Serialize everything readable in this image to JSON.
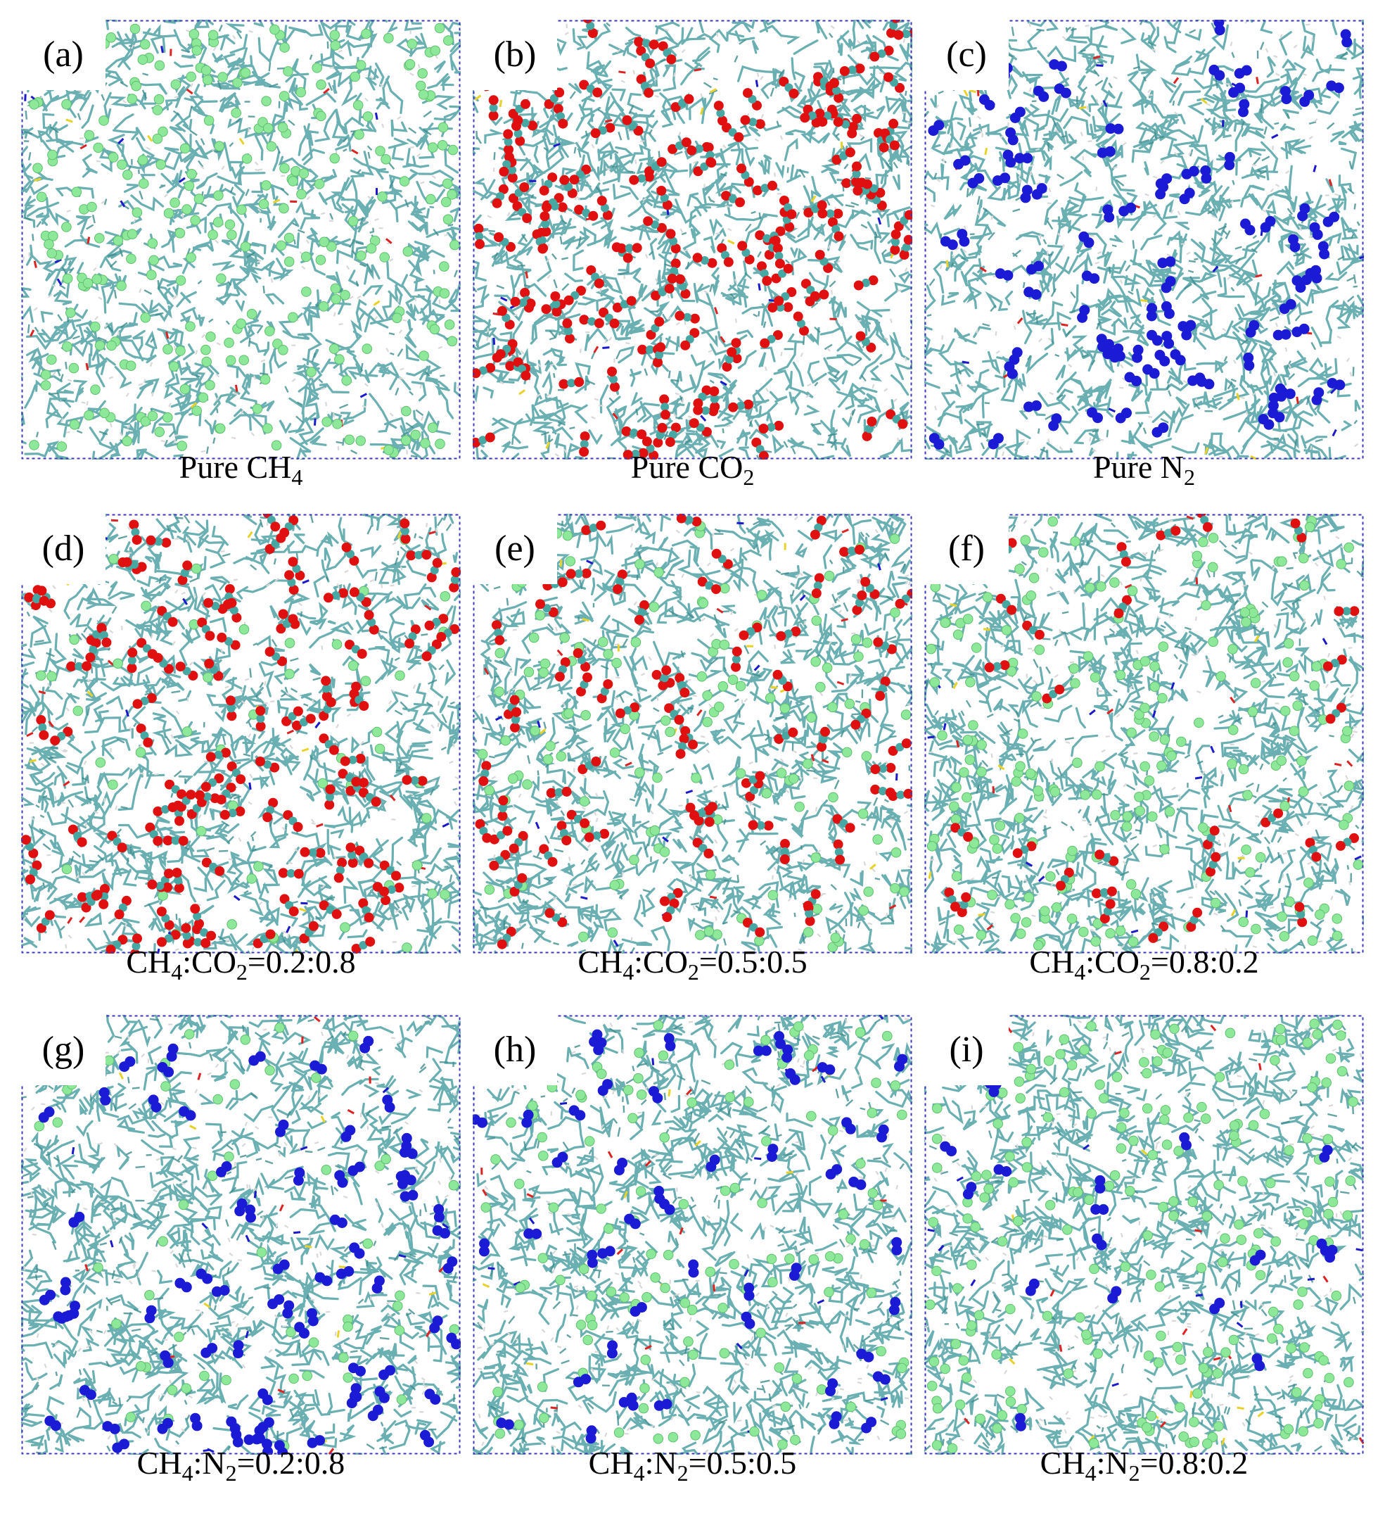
{
  "panels": [
    {
      "label": "(a)",
      "caption": [
        {
          "t": "Pure CH"
        },
        {
          "s": "4"
        }
      ],
      "mix": [
        [
          "ch4",
          1.0
        ]
      ]
    },
    {
      "label": "(b)",
      "caption": [
        {
          "t": "Pure CO"
        },
        {
          "s": "2"
        }
      ],
      "mix": [
        [
          "co2",
          1.0
        ]
      ]
    },
    {
      "label": "(c)",
      "caption": [
        {
          "t": "Pure N"
        },
        {
          "s": "2"
        }
      ],
      "mix": [
        [
          "n2",
          1.0
        ]
      ]
    },
    {
      "label": "(d)",
      "caption": [
        {
          "t": "CH"
        },
        {
          "s": "4"
        },
        {
          "t": ":CO"
        },
        {
          "s": "2"
        },
        {
          "t": "=0.2:0.8"
        }
      ],
      "mix": [
        [
          "ch4",
          0.2
        ],
        [
          "co2",
          0.8
        ]
      ]
    },
    {
      "label": "(e)",
      "caption": [
        {
          "t": "CH"
        },
        {
          "s": "4"
        },
        {
          "t": ":CO"
        },
        {
          "s": "2"
        },
        {
          "t": "=0.5:0.5"
        }
      ],
      "mix": [
        [
          "ch4",
          0.5
        ],
        [
          "co2",
          0.5
        ]
      ]
    },
    {
      "label": "(f)",
      "caption": [
        {
          "t": "CH"
        },
        {
          "s": "4"
        },
        {
          "t": ":CO"
        },
        {
          "s": "2"
        },
        {
          "t": "=0.8:0.2"
        }
      ],
      "mix": [
        [
          "ch4",
          0.8
        ],
        [
          "co2",
          0.2
        ]
      ]
    },
    {
      "label": "(g)",
      "caption": [
        {
          "t": "CH"
        },
        {
          "s": "4"
        },
        {
          "t": ":N"
        },
        {
          "s": "2"
        },
        {
          "t": "=0.2:0.8"
        }
      ],
      "mix": [
        [
          "ch4",
          0.2
        ],
        [
          "n2",
          0.8
        ]
      ]
    },
    {
      "label": "(h)",
      "caption": [
        {
          "t": "CH"
        },
        {
          "s": "4"
        },
        {
          "t": ":N"
        },
        {
          "s": "2"
        },
        {
          "t": "=0.5:0.5"
        }
      ],
      "mix": [
        [
          "ch4",
          0.5
        ],
        [
          "n2",
          0.5
        ]
      ]
    },
    {
      "label": "(i)",
      "caption": [
        {
          "t": "CH"
        },
        {
          "s": "4"
        },
        {
          "t": ":N"
        },
        {
          "s": "2"
        },
        {
          "t": "=0.8:0.2"
        }
      ],
      "mix": [
        [
          "ch4",
          0.8
        ],
        [
          "n2",
          0.2
        ]
      ]
    }
  ],
  "colors": {
    "matrix": "#5aa6a8",
    "matrix_dark": "#3f8c8f",
    "ch4": "#8ee89a",
    "co2_o": "#e01010",
    "co2_c": "#47a7a3",
    "n2": "#1b1bd6",
    "box": "#3a3ab8",
    "sulfur": "#e8d22a",
    "nitrogen_atom": "#1a1acc",
    "oxygen_atom": "#dd2222",
    "hydrogen": "#d8d8d8"
  }
}
